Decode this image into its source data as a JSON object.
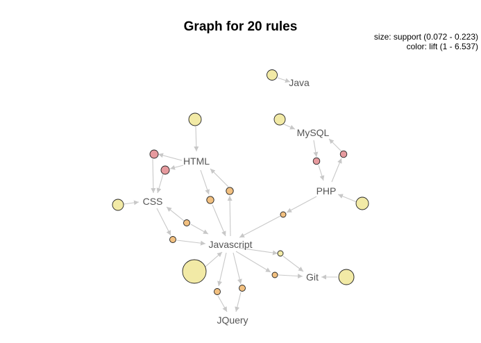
{
  "title": "Graph for 20 rules",
  "legend": {
    "size": "size: support (0.072 - 0.223)",
    "color": "color: lift (1 - 6.537)"
  },
  "colors": {
    "edge": "#c8c8c8",
    "label": "#555555",
    "lift_low": "#f2eaa6",
    "lift_mid": "#f2c080",
    "lift_high": "#e69a9e"
  },
  "items": [
    "Java",
    "MySQL",
    "HTML",
    "PHP",
    "CSS",
    "Javascript",
    "Git",
    "JQuery"
  ]
}
